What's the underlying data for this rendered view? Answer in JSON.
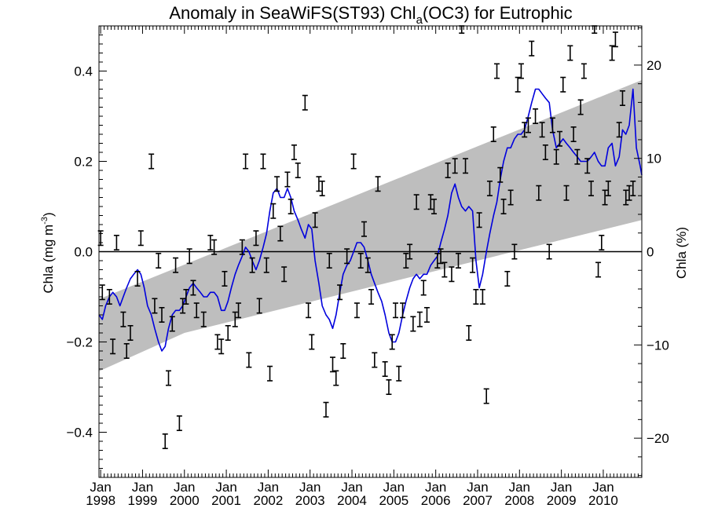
{
  "chart_data": {
    "type": "line",
    "title": {
      "prefix": "Anomaly in SeaWiFS(ST93) Chl",
      "subscript": "a",
      "suffix": "(OC3) for Eutrophic"
    },
    "ylabel_left": {
      "main": "Chla (mg m",
      "superscript": "-3",
      "close": ")"
    },
    "ylabel_right": "Chla (%)",
    "x_tick_labels": [
      {
        "month": "Jan",
        "year": "1998",
        "t": 1998.0
      },
      {
        "month": "Jan",
        "year": "1999",
        "t": 1999.0
      },
      {
        "month": "Jan",
        "year": "2000",
        "t": 2000.0
      },
      {
        "month": "Jan",
        "year": "2001",
        "t": 2001.0
      },
      {
        "month": "Jan",
        "year": "2002",
        "t": 2002.0
      },
      {
        "month": "Jan",
        "year": "2003",
        "t": 2003.0
      },
      {
        "month": "Jan",
        "year": "2004",
        "t": 2004.0
      },
      {
        "month": "Jan",
        "year": "2005",
        "t": 2005.0
      },
      {
        "month": "Jan",
        "year": "2006",
        "t": 2006.0
      },
      {
        "month": "Jan",
        "year": "2007",
        "t": 2007.0
      },
      {
        "month": "Jan",
        "year": "2008",
        "t": 2008.0
      },
      {
        "month": "Jan",
        "year": "2009",
        "t": 2009.0
      },
      {
        "month": "Jan",
        "year": "2010",
        "t": 2010.0
      }
    ],
    "xlim": [
      1997.96,
      2010.92
    ],
    "ylim_left": [
      -0.5,
      0.5
    ],
    "y_ticks_left": [
      {
        "v": 0.4,
        "label": "0.4"
      },
      {
        "v": 0.2,
        "label": "0.2"
      },
      {
        "v": 0.0,
        "label": "0.0"
      },
      {
        "v": -0.2,
        "label": "−0.2"
      },
      {
        "v": -0.4,
        "label": "−0.4"
      }
    ],
    "ylim_right": [
      -24.2,
      24.2
    ],
    "y_ticks_right": [
      {
        "v": 20,
        "label": "20"
      },
      {
        "v": 10,
        "label": "10"
      },
      {
        "v": 0,
        "label": "0"
      },
      {
        "v": -10,
        "label": "−10"
      },
      {
        "v": -20,
        "label": "−20"
      }
    ],
    "zero_line": 0.0,
    "trend_band": {
      "color": "#bebebe",
      "start": {
        "t": 1997.96,
        "lo": -0.265,
        "hi": -0.105
      },
      "end": {
        "t": 2010.92,
        "lo": 0.07,
        "hi": 0.38
      },
      "knot": {
        "t": 2000.0,
        "lo": -0.18
      }
    },
    "smoothed_series": {
      "color": "#0000dd",
      "points": [
        [
          1997.96,
          -0.14
        ],
        [
          1998.04,
          -0.15
        ],
        [
          1998.12,
          -0.12
        ],
        [
          1998.21,
          -0.1
        ],
        [
          1998.29,
          -0.09
        ],
        [
          1998.38,
          -0.1
        ],
        [
          1998.46,
          -0.12
        ],
        [
          1998.54,
          -0.1
        ],
        [
          1998.62,
          -0.08
        ],
        [
          1998.71,
          -0.06
        ],
        [
          1998.79,
          -0.05
        ],
        [
          1998.88,
          -0.04
        ],
        [
          1998.96,
          -0.05
        ],
        [
          1999.04,
          -0.08
        ],
        [
          1999.12,
          -0.12
        ],
        [
          1999.21,
          -0.14
        ],
        [
          1999.29,
          -0.17
        ],
        [
          1999.38,
          -0.2
        ],
        [
          1999.46,
          -0.22
        ],
        [
          1999.54,
          -0.21
        ],
        [
          1999.62,
          -0.17
        ],
        [
          1999.71,
          -0.14
        ],
        [
          1999.79,
          -0.13
        ],
        [
          1999.88,
          -0.13
        ],
        [
          1999.96,
          -0.12
        ],
        [
          2000.04,
          -0.1
        ],
        [
          2000.12,
          -0.08
        ],
        [
          2000.21,
          -0.07
        ],
        [
          2000.29,
          -0.08
        ],
        [
          2000.38,
          -0.09
        ],
        [
          2000.46,
          -0.1
        ],
        [
          2000.54,
          -0.1
        ],
        [
          2000.62,
          -0.09
        ],
        [
          2000.71,
          -0.09
        ],
        [
          2000.79,
          -0.1
        ],
        [
          2000.88,
          -0.13
        ],
        [
          2000.96,
          -0.13
        ],
        [
          2001.04,
          -0.11
        ],
        [
          2001.12,
          -0.08
        ],
        [
          2001.21,
          -0.05
        ],
        [
          2001.29,
          -0.03
        ],
        [
          2001.38,
          -0.01
        ],
        [
          2001.46,
          0.01
        ],
        [
          2001.54,
          0.0
        ],
        [
          2001.62,
          -0.02
        ],
        [
          2001.71,
          -0.04
        ],
        [
          2001.79,
          -0.02
        ],
        [
          2001.88,
          0.01
        ],
        [
          2001.96,
          0.04
        ],
        [
          2002.04,
          0.09
        ],
        [
          2002.12,
          0.13
        ],
        [
          2002.21,
          0.14
        ],
        [
          2002.29,
          0.12
        ],
        [
          2002.38,
          0.12
        ],
        [
          2002.46,
          0.14
        ],
        [
          2002.54,
          0.12
        ],
        [
          2002.62,
          0.09
        ],
        [
          2002.71,
          0.07
        ],
        [
          2002.79,
          0.05
        ],
        [
          2002.88,
          0.03
        ],
        [
          2002.96,
          0.06
        ],
        [
          2003.04,
          0.05
        ],
        [
          2003.12,
          -0.02
        ],
        [
          2003.21,
          -0.07
        ],
        [
          2003.29,
          -0.12
        ],
        [
          2003.38,
          -0.14
        ],
        [
          2003.46,
          -0.15
        ],
        [
          2003.54,
          -0.17
        ],
        [
          2003.62,
          -0.14
        ],
        [
          2003.71,
          -0.09
        ],
        [
          2003.79,
          -0.05
        ],
        [
          2003.88,
          -0.03
        ],
        [
          2003.96,
          -0.02
        ],
        [
          2004.04,
          0.0
        ],
        [
          2004.12,
          0.02
        ],
        [
          2004.21,
          0.02
        ],
        [
          2004.29,
          0.01
        ],
        [
          2004.38,
          -0.02
        ],
        [
          2004.46,
          -0.05
        ],
        [
          2004.54,
          -0.07
        ],
        [
          2004.62,
          -0.09
        ],
        [
          2004.71,
          -0.11
        ],
        [
          2004.79,
          -0.14
        ],
        [
          2004.88,
          -0.18
        ],
        [
          2004.96,
          -0.2
        ],
        [
          2005.04,
          -0.2
        ],
        [
          2005.12,
          -0.18
        ],
        [
          2005.21,
          -0.14
        ],
        [
          2005.29,
          -0.11
        ],
        [
          2005.38,
          -0.08
        ],
        [
          2005.46,
          -0.06
        ],
        [
          2005.54,
          -0.05
        ],
        [
          2005.62,
          -0.06
        ],
        [
          2005.71,
          -0.05
        ],
        [
          2005.79,
          -0.05
        ],
        [
          2005.88,
          -0.03
        ],
        [
          2005.96,
          -0.02
        ],
        [
          2006.04,
          -0.01
        ],
        [
          2006.12,
          0.02
        ],
        [
          2006.21,
          0.05
        ],
        [
          2006.29,
          0.08
        ],
        [
          2006.38,
          0.13
        ],
        [
          2006.46,
          0.15
        ],
        [
          2006.54,
          0.12
        ],
        [
          2006.62,
          0.1
        ],
        [
          2006.71,
          0.09
        ],
        [
          2006.79,
          0.1
        ],
        [
          2006.88,
          0.09
        ],
        [
          2006.96,
          -0.02
        ],
        [
          2007.04,
          -0.08
        ],
        [
          2007.12,
          -0.05
        ],
        [
          2007.21,
          0.0
        ],
        [
          2007.29,
          0.04
        ],
        [
          2007.38,
          0.08
        ],
        [
          2007.46,
          0.11
        ],
        [
          2007.54,
          0.16
        ],
        [
          2007.62,
          0.2
        ],
        [
          2007.71,
          0.23
        ],
        [
          2007.79,
          0.23
        ],
        [
          2007.88,
          0.25
        ],
        [
          2007.96,
          0.26
        ],
        [
          2008.04,
          0.26
        ],
        [
          2008.12,
          0.27
        ],
        [
          2008.21,
          0.3
        ],
        [
          2008.29,
          0.33
        ],
        [
          2008.38,
          0.36
        ],
        [
          2008.46,
          0.36
        ],
        [
          2008.54,
          0.35
        ],
        [
          2008.62,
          0.34
        ],
        [
          2008.71,
          0.33
        ],
        [
          2008.79,
          0.27
        ],
        [
          2008.88,
          0.23
        ],
        [
          2008.96,
          0.24
        ],
        [
          2009.04,
          0.25
        ],
        [
          2009.12,
          0.24
        ],
        [
          2009.21,
          0.23
        ],
        [
          2009.29,
          0.22
        ],
        [
          2009.38,
          0.21
        ],
        [
          2009.46,
          0.2
        ],
        [
          2009.54,
          0.2
        ],
        [
          2009.62,
          0.2
        ],
        [
          2009.71,
          0.21
        ],
        [
          2009.79,
          0.22
        ],
        [
          2009.88,
          0.2
        ],
        [
          2009.96,
          0.19
        ],
        [
          2010.04,
          0.19
        ],
        [
          2010.12,
          0.23
        ],
        [
          2010.21,
          0.24
        ],
        [
          2010.29,
          0.19
        ],
        [
          2010.38,
          0.21
        ],
        [
          2010.46,
          0.27
        ],
        [
          2010.54,
          0.26
        ],
        [
          2010.62,
          0.28
        ],
        [
          2010.71,
          0.36
        ],
        [
          2010.79,
          0.23
        ],
        [
          2010.88,
          0.19
        ],
        [
          2010.92,
          0.17
        ]
      ]
    },
    "monthly_errorbars": {
      "color": "#000000",
      "half_height": 0.016,
      "points": [
        [
          1998.0,
          0.03
        ],
        [
          1998.04,
          -0.09
        ],
        [
          1998.21,
          -0.1
        ],
        [
          1998.29,
          -0.21
        ],
        [
          1998.38,
          0.02
        ],
        [
          1998.54,
          -0.15
        ],
        [
          1998.62,
          -0.22
        ],
        [
          1998.71,
          -0.18
        ],
        [
          1998.88,
          -0.06
        ],
        [
          1998.96,
          0.03
        ],
        [
          1999.21,
          0.2
        ],
        [
          1999.29,
          -0.12
        ],
        [
          1999.38,
          -0.02
        ],
        [
          1999.46,
          -0.14
        ],
        [
          1999.54,
          -0.42
        ],
        [
          1999.62,
          -0.28
        ],
        [
          1999.71,
          -0.16
        ],
        [
          1999.79,
          -0.03
        ],
        [
          1999.88,
          -0.38
        ],
        [
          1999.96,
          -0.12
        ],
        [
          2000.04,
          -0.1
        ],
        [
          2000.12,
          -0.01
        ],
        [
          2000.21,
          -0.08
        ],
        [
          2000.29,
          -0.13
        ],
        [
          2000.46,
          -0.15
        ],
        [
          2000.62,
          0.02
        ],
        [
          2000.71,
          0.01
        ],
        [
          2000.79,
          -0.2
        ],
        [
          2000.88,
          -0.21
        ],
        [
          2000.96,
          -0.06
        ],
        [
          2001.04,
          -0.18
        ],
        [
          2001.21,
          -0.15
        ],
        [
          2001.29,
          -0.13
        ],
        [
          2001.38,
          0.01
        ],
        [
          2001.46,
          0.2
        ],
        [
          2001.54,
          -0.24
        ],
        [
          2001.62,
          -0.03
        ],
        [
          2001.71,
          0.03
        ],
        [
          2001.79,
          -0.12
        ],
        [
          2001.88,
          0.2
        ],
        [
          2001.96,
          -0.03
        ],
        [
          2002.04,
          -0.27
        ],
        [
          2002.12,
          0.09
        ],
        [
          2002.21,
          0.15
        ],
        [
          2002.29,
          0.04
        ],
        [
          2002.38,
          -0.05
        ],
        [
          2002.46,
          0.16
        ],
        [
          2002.54,
          0.1
        ],
        [
          2002.62,
          0.22
        ],
        [
          2002.71,
          0.18
        ],
        [
          2002.88,
          0.33
        ],
        [
          2002.96,
          -0.13
        ],
        [
          2003.04,
          -0.2
        ],
        [
          2003.12,
          0.07
        ],
        [
          2003.21,
          0.15
        ],
        [
          2003.29,
          0.14
        ],
        [
          2003.38,
          -0.35
        ],
        [
          2003.46,
          -0.02
        ],
        [
          2003.54,
          -0.25
        ],
        [
          2003.62,
          -0.28
        ],
        [
          2003.71,
          -0.09
        ],
        [
          2003.79,
          -0.22
        ],
        [
          2003.88,
          -0.01
        ],
        [
          2004.04,
          0.2
        ],
        [
          2004.12,
          -0.13
        ],
        [
          2004.21,
          -0.02
        ],
        [
          2004.29,
          0.05
        ],
        [
          2004.38,
          -0.03
        ],
        [
          2004.46,
          -0.1
        ],
        [
          2004.54,
          -0.24
        ],
        [
          2004.62,
          0.15
        ],
        [
          2004.79,
          -0.26
        ],
        [
          2004.88,
          -0.3
        ],
        [
          2004.96,
          -0.2
        ],
        [
          2005.04,
          -0.13
        ],
        [
          2005.12,
          -0.27
        ],
        [
          2005.21,
          -0.13
        ],
        [
          2005.29,
          -0.02
        ],
        [
          2005.38,
          0.0
        ],
        [
          2005.46,
          -0.16
        ],
        [
          2005.54,
          0.11
        ],
        [
          2005.62,
          -0.15
        ],
        [
          2005.71,
          -0.08
        ],
        [
          2005.79,
          -0.14
        ],
        [
          2005.88,
          0.11
        ],
        [
          2005.96,
          0.1
        ],
        [
          2006.04,
          -0.02
        ],
        [
          2006.12,
          -0.01
        ],
        [
          2006.21,
          -0.04
        ],
        [
          2006.29,
          0.18
        ],
        [
          2006.38,
          -0.05
        ],
        [
          2006.46,
          0.19
        ],
        [
          2006.54,
          -0.02
        ],
        [
          2006.62,
          0.5
        ],
        [
          2006.71,
          0.19
        ],
        [
          2006.79,
          -0.18
        ],
        [
          2006.88,
          -0.03
        ],
        [
          2006.96,
          -0.1
        ],
        [
          2007.04,
          0.07
        ],
        [
          2007.12,
          -0.1
        ],
        [
          2007.21,
          -0.32
        ],
        [
          2007.29,
          0.14
        ],
        [
          2007.38,
          0.26
        ],
        [
          2007.46,
          0.4
        ],
        [
          2007.54,
          0.17
        ],
        [
          2007.62,
          0.1
        ],
        [
          2007.71,
          -0.06
        ],
        [
          2007.79,
          0.12
        ],
        [
          2007.88,
          0.0
        ],
        [
          2007.96,
          0.37
        ],
        [
          2008.04,
          0.4
        ],
        [
          2008.12,
          0.27
        ],
        [
          2008.21,
          0.28
        ],
        [
          2008.29,
          0.45
        ],
        [
          2008.38,
          0.3
        ],
        [
          2008.46,
          0.13
        ],
        [
          2008.54,
          0.27
        ],
        [
          2008.62,
          0.22
        ],
        [
          2008.71,
          0.0
        ],
        [
          2008.79,
          0.28
        ],
        [
          2008.88,
          0.21
        ],
        [
          2008.96,
          0.25
        ],
        [
          2009.04,
          0.37
        ],
        [
          2009.12,
          0.13
        ],
        [
          2009.21,
          0.44
        ],
        [
          2009.29,
          0.26
        ],
        [
          2009.38,
          0.21
        ],
        [
          2009.46,
          0.32
        ],
        [
          2009.54,
          0.4
        ],
        [
          2009.62,
          0.19
        ],
        [
          2009.71,
          0.14
        ],
        [
          2009.79,
          0.5
        ],
        [
          2009.88,
          -0.04
        ],
        [
          2009.96,
          0.02
        ],
        [
          2010.04,
          0.12
        ],
        [
          2010.12,
          0.14
        ],
        [
          2010.21,
          0.44
        ],
        [
          2010.29,
          0.47
        ],
        [
          2010.38,
          0.27
        ],
        [
          2010.46,
          0.34
        ],
        [
          2010.54,
          0.12
        ],
        [
          2010.62,
          0.13
        ],
        [
          2010.71,
          0.14
        ]
      ]
    }
  }
}
